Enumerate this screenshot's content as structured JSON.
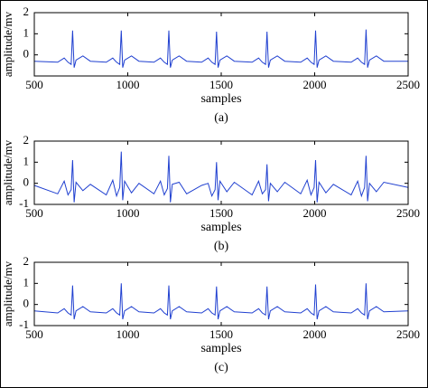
{
  "chart_data": [
    {
      "type": "line",
      "caption": "(a)",
      "xlabel": "samples",
      "ylabel": "amplitude/mv",
      "xlim": [
        500,
        2500
      ],
      "xticks": [
        500,
        1000,
        1500,
        2000,
        2500
      ],
      "ylim": [
        -1,
        2
      ],
      "yticks": [
        0,
        1,
        2
      ],
      "series": [
        {
          "color": "#2040d0",
          "x": [
            500,
            625,
            660,
            680,
            697,
            705,
            713,
            723,
            760,
            800,
            885,
            920,
            940,
            957,
            965,
            973,
            983,
            1020,
            1060,
            1140,
            1175,
            1195,
            1212,
            1220,
            1228,
            1238,
            1275,
            1315,
            1395,
            1430,
            1450,
            1467,
            1475,
            1483,
            1493,
            1530,
            1570,
            1665,
            1700,
            1720,
            1737,
            1745,
            1753,
            1763,
            1800,
            1840,
            1925,
            1960,
            1980,
            1997,
            2005,
            2013,
            2023,
            2060,
            2100,
            2195,
            2230,
            2250,
            2267,
            2275,
            2283,
            2293,
            2330,
            2370,
            2500
          ],
          "values": [
            -0.3,
            -0.35,
            -0.15,
            -0.35,
            -0.45,
            1.15,
            -0.6,
            -0.25,
            -0.05,
            -0.3,
            -0.35,
            -0.15,
            -0.35,
            -0.45,
            1.15,
            -0.6,
            -0.25,
            -0.05,
            -0.3,
            -0.35,
            -0.15,
            -0.35,
            -0.45,
            1.15,
            -0.6,
            -0.25,
            -0.05,
            -0.3,
            -0.35,
            -0.15,
            -0.35,
            -0.45,
            1.1,
            -0.6,
            -0.25,
            -0.05,
            -0.3,
            -0.35,
            -0.15,
            -0.35,
            -0.45,
            1.1,
            -0.6,
            -0.25,
            -0.05,
            -0.3,
            -0.35,
            -0.15,
            -0.35,
            -0.45,
            1.15,
            -0.6,
            -0.25,
            -0.05,
            -0.3,
            -0.35,
            -0.15,
            -0.35,
            -0.45,
            1.2,
            -0.6,
            -0.25,
            -0.05,
            -0.3,
            -0.3
          ]
        }
      ]
    },
    {
      "type": "line",
      "caption": "(b)",
      "xlabel": "samples",
      "ylabel": "amplitude/mv",
      "xlim": [
        500,
        2500
      ],
      "xticks": [
        500,
        1000,
        1500,
        2000,
        2500
      ],
      "ylim": [
        -1,
        2
      ],
      "yticks": [
        -1,
        0,
        1,
        2
      ],
      "series": [
        {
          "color": "#2040d0",
          "x": [
            500,
            625,
            660,
            680,
            697,
            705,
            713,
            723,
            760,
            800,
            885,
            920,
            940,
            957,
            965,
            973,
            983,
            1020,
            1060,
            1140,
            1175,
            1195,
            1212,
            1220,
            1228,
            1238,
            1275,
            1315,
            1395,
            1430,
            1450,
            1467,
            1475,
            1483,
            1493,
            1530,
            1570,
            1665,
            1700,
            1720,
            1737,
            1745,
            1753,
            1763,
            1800,
            1840,
            1925,
            1960,
            1980,
            1997,
            2005,
            2013,
            2023,
            2060,
            2100,
            2195,
            2230,
            2250,
            2267,
            2275,
            2283,
            2293,
            2330,
            2370,
            2500
          ],
          "values": [
            -0.1,
            -0.5,
            0.1,
            -0.55,
            -0.3,
            1.1,
            -0.9,
            0.05,
            -0.35,
            -0.05,
            -0.55,
            0.15,
            -0.6,
            -0.2,
            1.5,
            -0.8,
            0.1,
            -0.45,
            0.0,
            -0.5,
            0.1,
            -0.55,
            -0.25,
            1.3,
            -0.9,
            -0.05,
            0.05,
            -0.5,
            -0.1,
            0.0,
            -0.6,
            -0.3,
            1.0,
            -0.8,
            0.1,
            -0.4,
            0.05,
            -0.55,
            0.1,
            -0.5,
            -0.3,
            0.9,
            -0.85,
            0.0,
            -0.4,
            0.05,
            -0.5,
            0.15,
            -0.55,
            -0.2,
            1.1,
            -0.9,
            0.05,
            -0.45,
            -0.05,
            -0.55,
            0.1,
            -0.6,
            -0.2,
            1.3,
            -0.85,
            0.0,
            -0.4,
            0.05,
            -0.2
          ]
        }
      ]
    },
    {
      "type": "line",
      "caption": "(c)",
      "xlabel": "samples",
      "ylabel": "amplitude/mv",
      "xlim": [
        500,
        2500
      ],
      "xticks": [
        500,
        1000,
        1500,
        2000,
        2500
      ],
      "ylim": [
        -1,
        2
      ],
      "yticks": [
        -1,
        0,
        1,
        2
      ],
      "series": [
        {
          "color": "#2040d0",
          "x": [
            500,
            625,
            660,
            680,
            697,
            705,
            713,
            723,
            760,
            800,
            885,
            920,
            940,
            957,
            965,
            973,
            983,
            1020,
            1060,
            1140,
            1175,
            1195,
            1212,
            1220,
            1228,
            1238,
            1275,
            1315,
            1395,
            1430,
            1450,
            1467,
            1475,
            1483,
            1493,
            1530,
            1570,
            1665,
            1700,
            1720,
            1737,
            1745,
            1753,
            1763,
            1800,
            1840,
            1925,
            1960,
            1980,
            1997,
            2005,
            2013,
            2023,
            2060,
            2100,
            2195,
            2230,
            2250,
            2267,
            2275,
            2283,
            2293,
            2330,
            2370,
            2500
          ],
          "values": [
            -0.3,
            -0.4,
            -0.2,
            -0.4,
            -0.5,
            0.9,
            -0.7,
            -0.3,
            -0.1,
            -0.35,
            -0.4,
            -0.2,
            -0.4,
            -0.5,
            1.0,
            -0.7,
            -0.3,
            -0.1,
            -0.35,
            -0.4,
            -0.2,
            -0.4,
            -0.5,
            0.9,
            -0.7,
            -0.3,
            -0.1,
            -0.35,
            -0.4,
            -0.2,
            -0.4,
            -0.5,
            0.85,
            -0.7,
            -0.3,
            -0.1,
            -0.35,
            -0.4,
            -0.2,
            -0.4,
            -0.5,
            0.85,
            -0.7,
            -0.3,
            -0.1,
            -0.35,
            -0.4,
            -0.2,
            -0.4,
            -0.5,
            0.95,
            -0.7,
            -0.3,
            -0.1,
            -0.35,
            -0.4,
            -0.2,
            -0.4,
            -0.5,
            1.0,
            -0.7,
            -0.3,
            -0.1,
            -0.35,
            -0.3
          ]
        }
      ]
    }
  ]
}
